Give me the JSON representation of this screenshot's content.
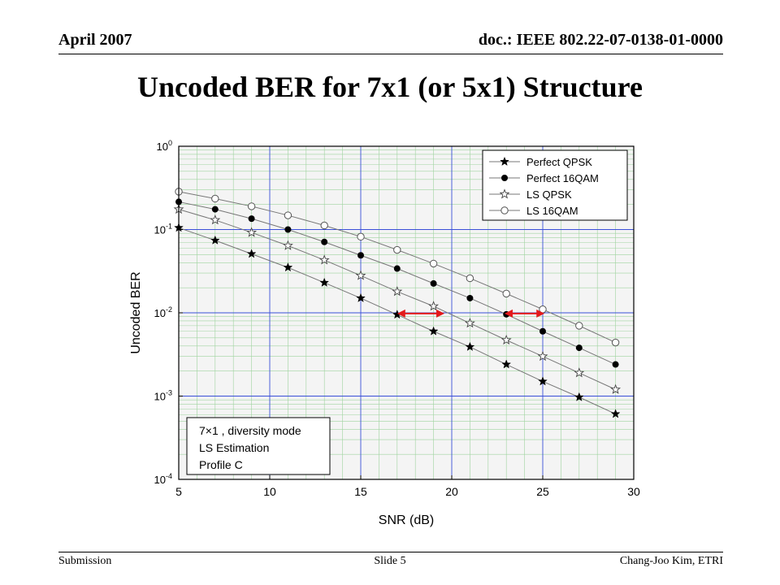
{
  "header": {
    "date": "April 2007",
    "doc": "doc.: IEEE 802.22-07-0138-01-0000"
  },
  "slide_title": "Uncoded BER for 7x1 (or 5x1) Structure",
  "footer": {
    "left": "Submission",
    "center": "Slide 5",
    "right": "Chang-Joo Kim, ETRI"
  },
  "chart_data": {
    "type": "line",
    "xlabel": "SNR (dB)",
    "ylabel": "Uncoded BER",
    "xlim": [
      5,
      30
    ],
    "ylim_log10": [
      -4,
      0
    ],
    "y_scale": "log",
    "x_ticks": [
      5,
      10,
      15,
      20,
      25,
      30
    ],
    "y_ticks": [
      {
        "base": "10",
        "exp": "0"
      },
      {
        "base": "10",
        "exp": "-1"
      },
      {
        "base": "10",
        "exp": "-2"
      },
      {
        "base": "10",
        "exp": "-3"
      },
      {
        "base": "10",
        "exp": "-4"
      }
    ],
    "grid": true,
    "legend_position": "top-right",
    "x": [
      5,
      7,
      9,
      11,
      13,
      15,
      17,
      19,
      21,
      23,
      25,
      27,
      29
    ],
    "series": [
      {
        "name": "Perfect QPSK",
        "marker": "filled-star",
        "values": [
          0.105,
          0.074,
          0.051,
          0.035,
          0.023,
          0.015,
          0.0095,
          0.006,
          0.0039,
          0.0024,
          0.0015,
          0.00097,
          0.00061
        ]
      },
      {
        "name": "Perfect 16QAM",
        "marker": "filled-circle",
        "values": [
          0.215,
          0.175,
          0.135,
          0.1,
          0.071,
          0.049,
          0.034,
          0.0225,
          0.015,
          0.0096,
          0.006,
          0.0038,
          0.0024
        ]
      },
      {
        "name": "LS QPSK",
        "marker": "open-star",
        "values": [
          0.175,
          0.13,
          0.092,
          0.064,
          0.043,
          0.028,
          0.018,
          0.012,
          0.0075,
          0.0047,
          0.003,
          0.0019,
          0.0012
        ]
      },
      {
        "name": "LS 16QAM",
        "marker": "open-circle",
        "values": [
          0.285,
          0.235,
          0.19,
          0.148,
          0.112,
          0.082,
          0.057,
          0.039,
          0.026,
          0.017,
          0.011,
          0.007,
          0.0044
        ]
      }
    ],
    "annotation_lines": [
      "7×1 , diversity mode",
      "LS Estimation",
      "Profile C"
    ],
    "arrows": [
      {
        "from": [
          17,
          0.0098
        ],
        "to": [
          19.6,
          0.0098
        ],
        "color": "#e31a1c"
      },
      {
        "from": [
          22.9,
          0.0098
        ],
        "to": [
          25.1,
          0.0098
        ],
        "color": "#e31a1c"
      }
    ]
  }
}
